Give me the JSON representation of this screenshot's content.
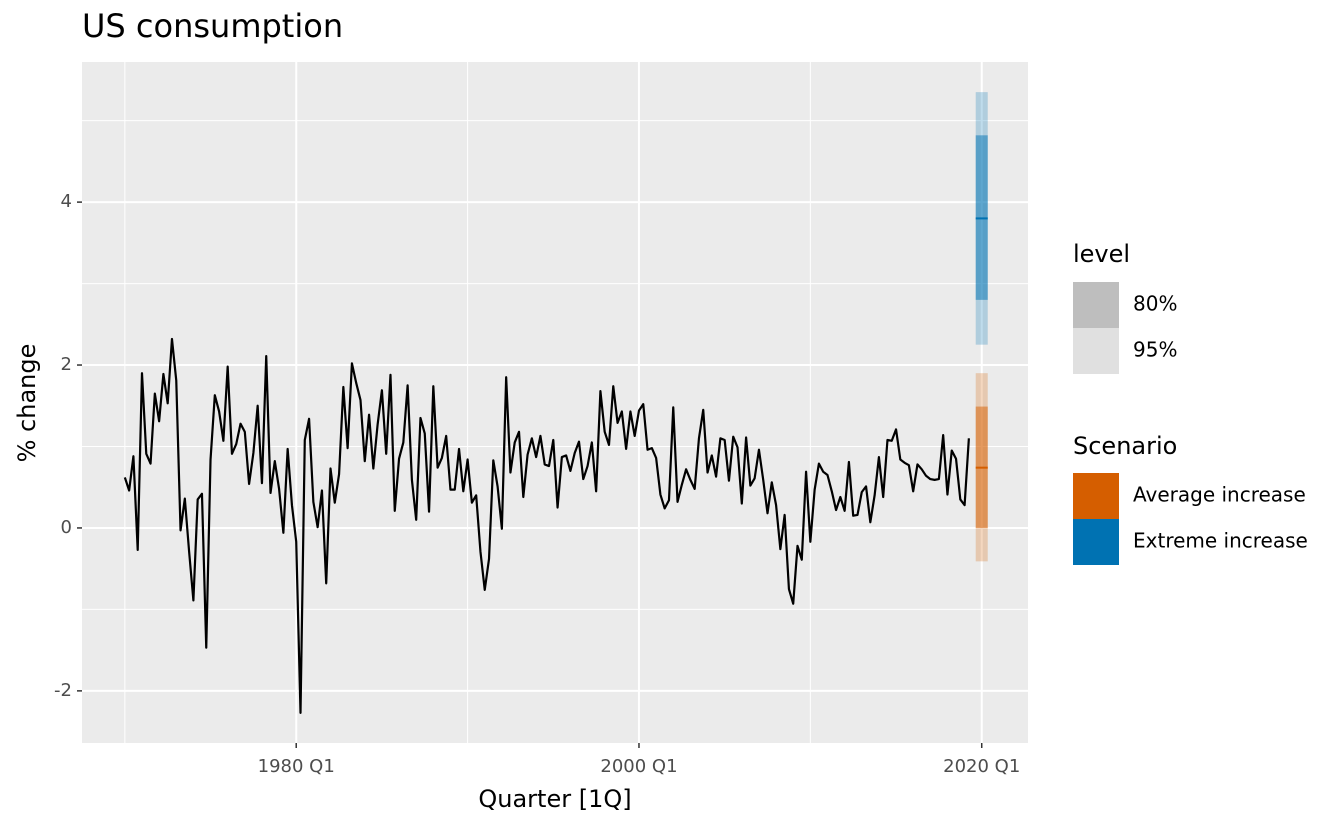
{
  "chart_data": {
    "type": "line",
    "title": "US consumption",
    "x_label": "Quarter [1Q]",
    "y_label": "% change",
    "color": "#000000",
    "x": [
      "1970 Q1",
      "1970 Q2",
      "1970 Q3",
      "1970 Q4",
      "1971 Q1",
      "1971 Q2",
      "1971 Q3",
      "1971 Q4",
      "1972 Q1",
      "1972 Q2",
      "1972 Q3",
      "1972 Q4",
      "1973 Q1",
      "1973 Q2",
      "1973 Q3",
      "1973 Q4",
      "1974 Q1",
      "1974 Q2",
      "1974 Q3",
      "1974 Q4",
      "1975 Q1",
      "1975 Q2",
      "1975 Q3",
      "1975 Q4",
      "1976 Q1",
      "1976 Q2",
      "1976 Q3",
      "1976 Q4",
      "1977 Q1",
      "1977 Q2",
      "1977 Q3",
      "1977 Q4",
      "1978 Q1",
      "1978 Q2",
      "1978 Q3",
      "1978 Q4",
      "1979 Q1",
      "1979 Q2",
      "1979 Q3",
      "1979 Q4",
      "1980 Q1",
      "1980 Q2",
      "1980 Q3",
      "1980 Q4",
      "1981 Q1",
      "1981 Q2",
      "1981 Q3",
      "1981 Q4",
      "1982 Q1",
      "1982 Q2",
      "1982 Q3",
      "1982 Q4",
      "1983 Q1",
      "1983 Q2",
      "1983 Q3",
      "1983 Q4",
      "1984 Q1",
      "1984 Q2",
      "1984 Q3",
      "1984 Q4",
      "1985 Q1",
      "1985 Q2",
      "1985 Q3",
      "1985 Q4",
      "1986 Q1",
      "1986 Q2",
      "1986 Q3",
      "1986 Q4",
      "1987 Q1",
      "1987 Q2",
      "1987 Q3",
      "1987 Q4",
      "1988 Q1",
      "1988 Q2",
      "1988 Q3",
      "1988 Q4",
      "1989 Q1",
      "1989 Q2",
      "1989 Q3",
      "1989 Q4",
      "1990 Q1",
      "1990 Q2",
      "1990 Q3",
      "1990 Q4",
      "1991 Q1",
      "1991 Q2",
      "1991 Q3",
      "1991 Q4",
      "1992 Q1",
      "1992 Q2",
      "1992 Q3",
      "1992 Q4",
      "1993 Q1",
      "1993 Q2",
      "1993 Q3",
      "1993 Q4",
      "1994 Q1",
      "1994 Q2",
      "1994 Q3",
      "1994 Q4",
      "1995 Q1",
      "1995 Q2",
      "1995 Q3",
      "1995 Q4",
      "1996 Q1",
      "1996 Q2",
      "1996 Q3",
      "1996 Q4",
      "1997 Q1",
      "1997 Q2",
      "1997 Q3",
      "1997 Q4",
      "1998 Q1",
      "1998 Q2",
      "1998 Q3",
      "1998 Q4",
      "1999 Q1",
      "1999 Q2",
      "1999 Q3",
      "1999 Q4",
      "2000 Q1",
      "2000 Q2",
      "2000 Q3",
      "2000 Q4",
      "2001 Q1",
      "2001 Q2",
      "2001 Q3",
      "2001 Q4",
      "2002 Q1",
      "2002 Q2",
      "2002 Q3",
      "2002 Q4",
      "2003 Q1",
      "2003 Q2",
      "2003 Q3",
      "2003 Q4",
      "2004 Q1",
      "2004 Q2",
      "2004 Q3",
      "2004 Q4",
      "2005 Q1",
      "2005 Q2",
      "2005 Q3",
      "2005 Q4",
      "2006 Q1",
      "2006 Q2",
      "2006 Q3",
      "2006 Q4",
      "2007 Q1",
      "2007 Q2",
      "2007 Q3",
      "2007 Q4",
      "2008 Q1",
      "2008 Q2",
      "2008 Q3",
      "2008 Q4",
      "2009 Q1",
      "2009 Q2",
      "2009 Q3",
      "2009 Q4",
      "2010 Q1",
      "2010 Q2",
      "2010 Q3",
      "2010 Q4",
      "2011 Q1",
      "2011 Q2",
      "2011 Q3",
      "2011 Q4",
      "2012 Q1",
      "2012 Q2",
      "2012 Q3",
      "2012 Q4",
      "2013 Q1",
      "2013 Q2",
      "2013 Q3",
      "2013 Q4",
      "2014 Q1",
      "2014 Q2",
      "2014 Q3",
      "2014 Q4",
      "2015 Q1",
      "2015 Q2",
      "2015 Q3",
      "2015 Q4",
      "2016 Q1",
      "2016 Q2",
      "2016 Q3",
      "2016 Q4",
      "2017 Q1",
      "2017 Q2",
      "2017 Q3",
      "2017 Q4",
      "2018 Q1",
      "2018 Q2",
      "2018 Q3",
      "2018 Q4",
      "2019 Q1",
      "2019 Q2"
    ],
    "values": [
      0.62,
      0.46,
      0.88,
      -0.27,
      1.9,
      0.91,
      0.79,
      1.65,
      1.31,
      1.89,
      1.53,
      2.32,
      1.81,
      -0.03,
      0.36,
      -0.29,
      -0.89,
      0.35,
      0.42,
      -1.47,
      0.84,
      1.63,
      1.43,
      1.07,
      1.98,
      0.91,
      1.03,
      1.28,
      1.18,
      0.54,
      0.92,
      1.5,
      0.55,
      2.11,
      0.43,
      0.82,
      0.48,
      -0.06,
      0.97,
      0.28,
      -0.17,
      -2.27,
      1.08,
      1.34,
      0.32,
      0.01,
      0.46,
      -0.68,
      0.73,
      0.31,
      0.66,
      1.73,
      0.98,
      2.02,
      1.78,
      1.57,
      0.82,
      1.39,
      0.73,
      1.27,
      1.69,
      0.91,
      1.88,
      0.21,
      0.85,
      1.05,
      1.75,
      0.59,
      0.1,
      1.35,
      1.16,
      0.2,
      1.74,
      0.74,
      0.86,
      1.13,
      0.47,
      0.47,
      0.97,
      0.45,
      0.84,
      0.31,
      0.4,
      -0.29,
      -0.76,
      -0.38,
      0.83,
      0.51,
      -0.01,
      1.85,
      0.68,
      1.05,
      1.18,
      0.38,
      0.9,
      1.1,
      0.87,
      1.13,
      0.78,
      0.76,
      1.08,
      0.25,
      0.87,
      0.89,
      0.7,
      0.92,
      1.06,
      0.6,
      0.76,
      1.05,
      0.45,
      1.68,
      1.18,
      1.02,
      1.74,
      1.29,
      1.43,
      0.97,
      1.43,
      1.13,
      1.44,
      1.52,
      0.96,
      0.98,
      0.86,
      0.41,
      0.24,
      0.34,
      1.48,
      0.32,
      0.53,
      0.72,
      0.59,
      0.48,
      1.1,
      1.45,
      0.68,
      0.89,
      0.63,
      1.1,
      1.08,
      0.58,
      1.12,
      0.99,
      0.3,
      1.11,
      0.52,
      0.61,
      0.96,
      0.59,
      0.18,
      0.56,
      0.28,
      -0.26,
      0.16,
      -0.75,
      -0.93,
      -0.22,
      -0.39,
      0.69,
      -0.17,
      0.47,
      0.79,
      0.69,
      0.65,
      0.45,
      0.22,
      0.38,
      0.21,
      0.81,
      0.15,
      0.16,
      0.44,
      0.51,
      0.07,
      0.4,
      0.87,
      0.38,
      1.08,
      1.07,
      1.21,
      0.84,
      0.8,
      0.77,
      0.45,
      0.78,
      0.72,
      0.64,
      0.6,
      0.59,
      0.6,
      1.14,
      0.41,
      0.95,
      0.85,
      0.35,
      0.28,
      1.1
    ],
    "forecasts": [
      {
        "name": "Average increase",
        "color": "#D55E00",
        "x": "2020 Q1",
        "mean": 0.74,
        "lower_80": 0.0,
        "upper_80": 1.49,
        "lower_95": -0.41,
        "upper_95": 1.9
      },
      {
        "name": "Extreme increase",
        "color": "#0072B2",
        "x": "2020 Q1",
        "mean": 3.8,
        "lower_80": 2.8,
        "upper_80": 4.82,
        "lower_95": 2.25,
        "upper_95": 5.35
      }
    ],
    "level_legend": {
      "title": "level",
      "labels": [
        "80%",
        "95%"
      ]
    },
    "scenario_legend_title": "Scenario",
    "xlim": [
      1967.5,
      2022.7
    ],
    "xticks": [
      {
        "value": 1980,
        "label": "1980 Q1"
      },
      {
        "value": 2000,
        "label": "2000 Q1"
      },
      {
        "value": 2020,
        "label": "2020 Q1"
      }
    ],
    "x_minor_ticks": [
      1970,
      1990,
      2010
    ],
    "ylim": [
      -2.64,
      5.72
    ],
    "yticks": [
      -2,
      0,
      2,
      4
    ],
    "y_minor_ticks": [
      -1,
      1,
      3,
      5
    ],
    "grid": true
  }
}
